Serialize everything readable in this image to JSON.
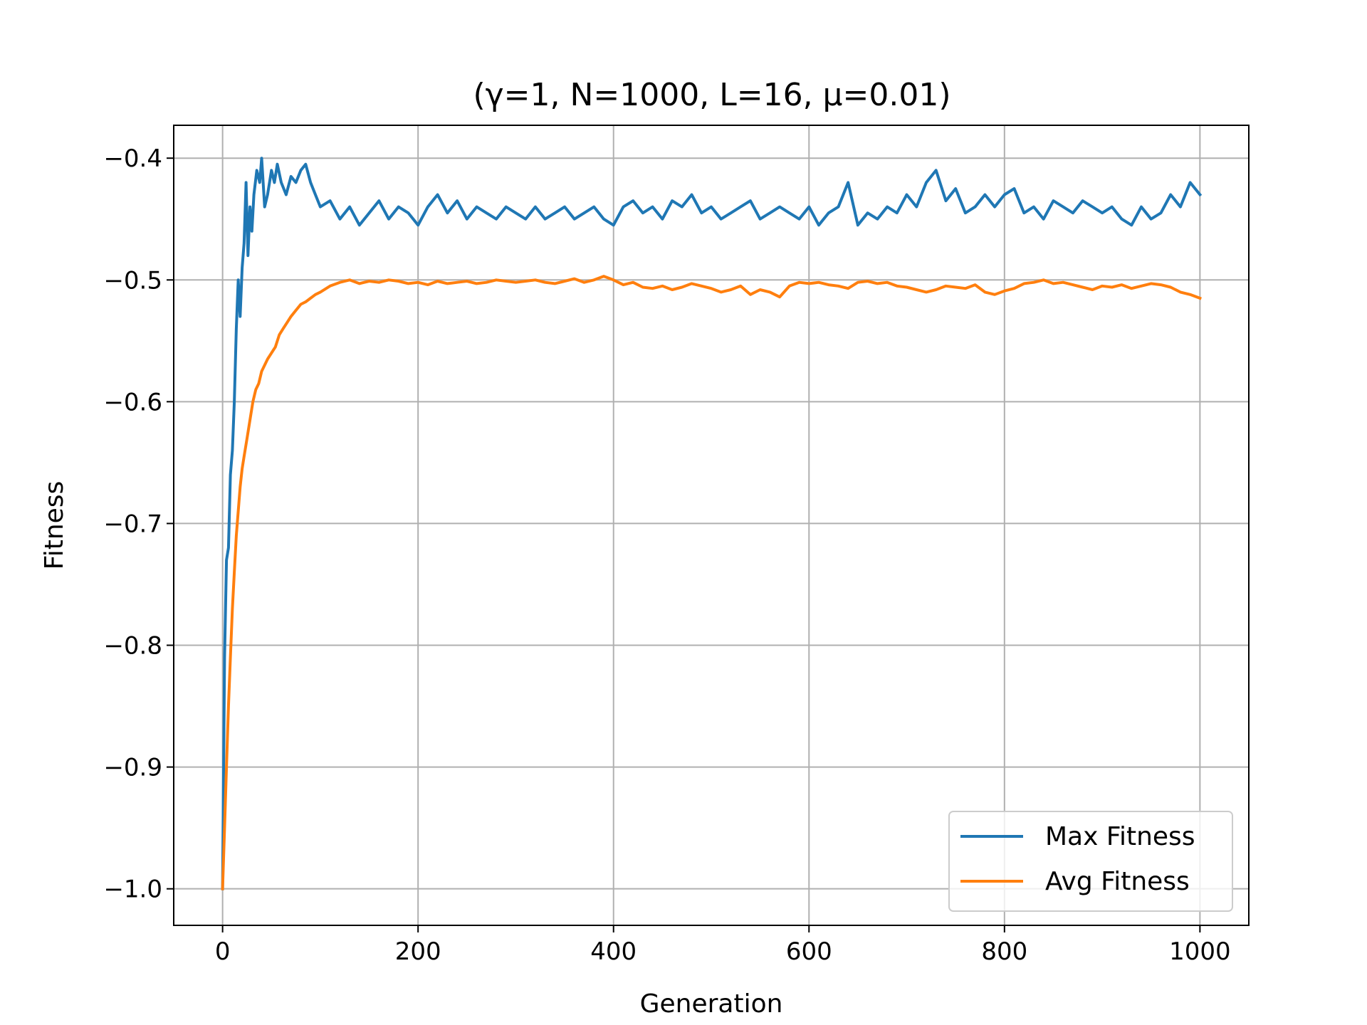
{
  "chart_data": {
    "type": "line",
    "title": "(γ=1, N=1000, L=16, μ=0.01)",
    "xlabel": "Generation",
    "ylabel": "Fitness",
    "xlim": [
      -50,
      1050
    ],
    "ylim": [
      -1.03,
      -0.373
    ],
    "xticks": [
      0,
      200,
      400,
      600,
      800,
      1000
    ],
    "yticks": [
      -1.0,
      -0.9,
      -0.8,
      -0.7,
      -0.6,
      -0.5,
      -0.4
    ],
    "xtick_labels": [
      "0",
      "200",
      "400",
      "600",
      "800",
      "1000"
    ],
    "ytick_labels": [
      "−1.0",
      "−0.9",
      "−0.8",
      "−0.7",
      "−0.6",
      "−0.5",
      "−0.4"
    ],
    "grid": true,
    "legend_position": "bottom-right",
    "series": [
      {
        "name": "Max Fitness",
        "color": "#1f77b4",
        "x": [
          0,
          2,
          4,
          6,
          8,
          10,
          12,
          14,
          16,
          18,
          20,
          22,
          24,
          26,
          28,
          30,
          32,
          35,
          38,
          40,
          43,
          46,
          50,
          53,
          56,
          60,
          65,
          70,
          75,
          80,
          85,
          90,
          95,
          100,
          110,
          120,
          130,
          140,
          150,
          160,
          170,
          180,
          190,
          200,
          210,
          220,
          230,
          240,
          250,
          260,
          270,
          280,
          290,
          300,
          310,
          320,
          330,
          340,
          350,
          360,
          370,
          380,
          390,
          400,
          410,
          420,
          430,
          440,
          450,
          460,
          470,
          480,
          490,
          500,
          510,
          520,
          530,
          540,
          550,
          560,
          570,
          580,
          590,
          600,
          610,
          620,
          630,
          640,
          650,
          660,
          670,
          680,
          690,
          700,
          710,
          720,
          730,
          740,
          750,
          760,
          770,
          780,
          790,
          800,
          810,
          820,
          830,
          840,
          850,
          860,
          870,
          880,
          890,
          900,
          910,
          920,
          930,
          940,
          950,
          960,
          970,
          980,
          990,
          1000
        ],
        "y": [
          -1.0,
          -0.81,
          -0.73,
          -0.72,
          -0.66,
          -0.64,
          -0.6,
          -0.54,
          -0.5,
          -0.53,
          -0.49,
          -0.47,
          -0.42,
          -0.48,
          -0.44,
          -0.46,
          -0.43,
          -0.41,
          -0.42,
          -0.4,
          -0.44,
          -0.43,
          -0.41,
          -0.42,
          -0.405,
          -0.42,
          -0.43,
          -0.415,
          -0.42,
          -0.41,
          -0.405,
          -0.42,
          -0.43,
          -0.44,
          -0.435,
          -0.45,
          -0.44,
          -0.455,
          -0.445,
          -0.435,
          -0.45,
          -0.44,
          -0.445,
          -0.455,
          -0.44,
          -0.43,
          -0.445,
          -0.435,
          -0.45,
          -0.44,
          -0.445,
          -0.45,
          -0.44,
          -0.445,
          -0.45,
          -0.44,
          -0.45,
          -0.445,
          -0.44,
          -0.45,
          -0.445,
          -0.44,
          -0.45,
          -0.455,
          -0.44,
          -0.435,
          -0.445,
          -0.44,
          -0.45,
          -0.435,
          -0.44,
          -0.43,
          -0.445,
          -0.44,
          -0.45,
          -0.445,
          -0.44,
          -0.435,
          -0.45,
          -0.445,
          -0.44,
          -0.445,
          -0.45,
          -0.44,
          -0.455,
          -0.445,
          -0.44,
          -0.42,
          -0.455,
          -0.445,
          -0.45,
          -0.44,
          -0.445,
          -0.43,
          -0.44,
          -0.42,
          -0.41,
          -0.435,
          -0.425,
          -0.445,
          -0.44,
          -0.43,
          -0.44,
          -0.43,
          -0.425,
          -0.445,
          -0.44,
          -0.45,
          -0.435,
          -0.44,
          -0.445,
          -0.435,
          -0.44,
          -0.445,
          -0.44,
          -0.45,
          -0.455,
          -0.44,
          -0.45,
          -0.445,
          -0.43,
          -0.44,
          -0.42,
          -0.43
        ]
      },
      {
        "name": "Avg Fitness",
        "color": "#ff7f0e",
        "x": [
          0,
          2,
          4,
          6,
          8,
          10,
          12,
          14,
          16,
          18,
          20,
          22,
          25,
          28,
          31,
          34,
          37,
          40,
          43,
          46,
          50,
          54,
          58,
          62,
          66,
          70,
          75,
          80,
          85,
          90,
          95,
          100,
          110,
          120,
          130,
          140,
          150,
          160,
          170,
          180,
          190,
          200,
          210,
          220,
          230,
          240,
          250,
          260,
          270,
          280,
          290,
          300,
          310,
          320,
          330,
          340,
          350,
          360,
          370,
          380,
          390,
          400,
          410,
          420,
          430,
          440,
          450,
          460,
          470,
          480,
          490,
          500,
          510,
          520,
          530,
          540,
          550,
          560,
          570,
          580,
          590,
          600,
          610,
          620,
          630,
          640,
          650,
          660,
          670,
          680,
          690,
          700,
          710,
          720,
          730,
          740,
          750,
          760,
          770,
          780,
          790,
          800,
          810,
          820,
          830,
          840,
          850,
          860,
          870,
          880,
          890,
          900,
          910,
          920,
          930,
          940,
          950,
          960,
          970,
          980,
          990,
          1000
        ],
        "y": [
          -1.0,
          -0.95,
          -0.9,
          -0.85,
          -0.81,
          -0.77,
          -0.74,
          -0.71,
          -0.69,
          -0.67,
          -0.655,
          -0.645,
          -0.63,
          -0.615,
          -0.6,
          -0.59,
          -0.585,
          -0.575,
          -0.57,
          -0.565,
          -0.56,
          -0.555,
          -0.545,
          -0.54,
          -0.535,
          -0.53,
          -0.525,
          -0.52,
          -0.518,
          -0.515,
          -0.512,
          -0.51,
          -0.505,
          -0.502,
          -0.5,
          -0.503,
          -0.501,
          -0.502,
          -0.5,
          -0.501,
          -0.503,
          -0.502,
          -0.504,
          -0.501,
          -0.503,
          -0.502,
          -0.501,
          -0.503,
          -0.502,
          -0.5,
          -0.501,
          -0.502,
          -0.501,
          -0.5,
          -0.502,
          -0.503,
          -0.501,
          -0.499,
          -0.502,
          -0.5,
          -0.497,
          -0.5,
          -0.504,
          -0.502,
          -0.506,
          -0.507,
          -0.505,
          -0.508,
          -0.506,
          -0.503,
          -0.505,
          -0.507,
          -0.51,
          -0.508,
          -0.505,
          -0.512,
          -0.508,
          -0.51,
          -0.514,
          -0.505,
          -0.502,
          -0.503,
          -0.502,
          -0.504,
          -0.505,
          -0.507,
          -0.502,
          -0.501,
          -0.503,
          -0.502,
          -0.505,
          -0.506,
          -0.508,
          -0.51,
          -0.508,
          -0.505,
          -0.506,
          -0.507,
          -0.504,
          -0.51,
          -0.512,
          -0.509,
          -0.507,
          -0.503,
          -0.502,
          -0.5,
          -0.503,
          -0.502,
          -0.504,
          -0.506,
          -0.508,
          -0.505,
          -0.506,
          -0.504,
          -0.507,
          -0.505,
          -0.503,
          -0.504,
          -0.506,
          -0.51,
          -0.512,
          -0.515
        ]
      }
    ]
  }
}
